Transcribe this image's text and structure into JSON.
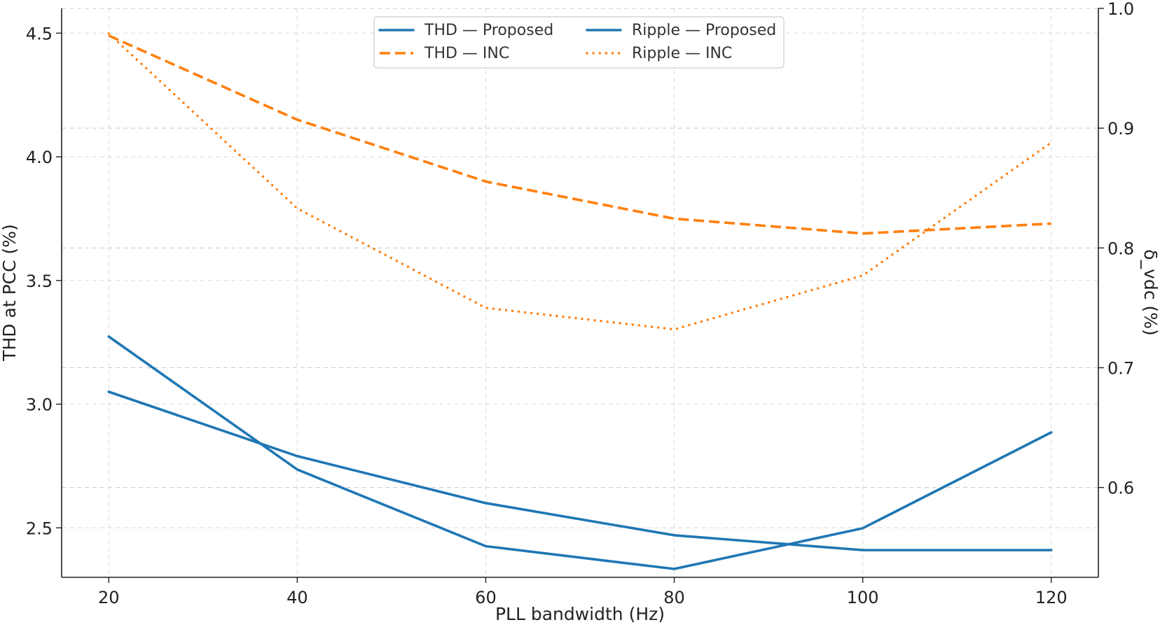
{
  "chart_data": {
    "type": "line",
    "x": [
      20,
      40,
      60,
      80,
      100,
      120
    ],
    "xlabel": "PLL bandwidth (Hz)",
    "ylabel": "THD at PCC (%)",
    "y2label": "δ_vdc (%)",
    "xlim": [
      15,
      125
    ],
    "ylim": [
      2.3,
      4.6
    ],
    "y2lim": [
      0.525,
      1.0
    ],
    "xticks": [
      "20",
      "40",
      "60",
      "80",
      "100",
      "120"
    ],
    "yticks": [
      "2.5",
      "3.0",
      "3.5",
      "4.0",
      "4.5"
    ],
    "y2ticks": [
      "0.6",
      "0.7",
      "0.8",
      "0.9",
      "1.0"
    ],
    "grid": true,
    "legend_position": "top-center",
    "series": [
      {
        "name": "THD — Proposed",
        "axis": "left",
        "style": "solid",
        "color": "#1f77b4",
        "values": [
          3.05,
          2.79,
          2.6,
          2.47,
          2.41,
          2.41
        ]
      },
      {
        "name": "THD — INC",
        "axis": "left",
        "style": "dashed",
        "color": "#ff7f0e",
        "values": [
          4.49,
          4.15,
          3.9,
          3.75,
          3.69,
          3.73
        ]
      },
      {
        "name": "Ripple — Proposed",
        "axis": "right",
        "style": "solid",
        "color": "#1f77b4",
        "values": [
          0.726,
          0.615,
          0.551,
          0.532,
          0.566,
          0.646
        ]
      },
      {
        "name": "Ripple — INC",
        "axis": "right",
        "style": "dotted",
        "color": "#ff7f0e",
        "values": [
          0.979,
          0.833,
          0.75,
          0.732,
          0.777,
          0.888
        ]
      }
    ]
  }
}
